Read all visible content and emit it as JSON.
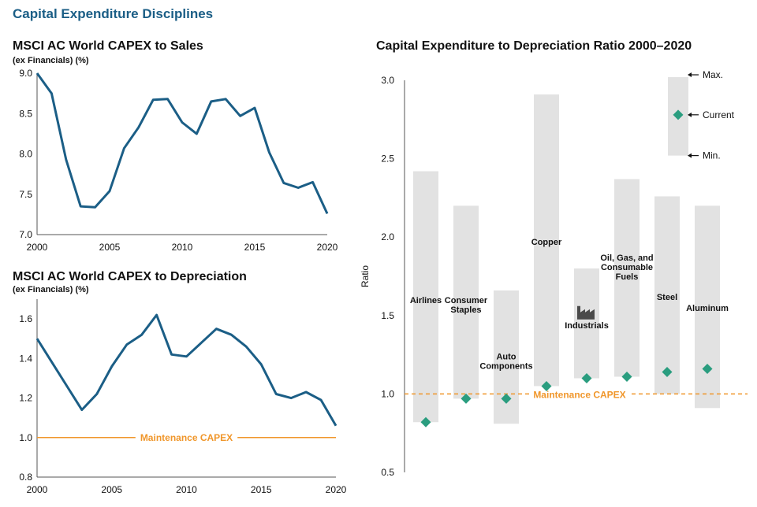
{
  "page_title": "Capital Expenditure Disciplines",
  "chart_data": [
    {
      "type": "line",
      "title": "MSCI AC World CAPEX to Sales",
      "subtitle": "(ex Financials) (%)",
      "xlabel": "",
      "ylabel": "",
      "xlim": [
        2000,
        2020
      ],
      "ylim": [
        7.0,
        9.0
      ],
      "xticks": [
        "2000",
        "2005",
        "2010",
        "2015",
        "2020"
      ],
      "yticks": [
        "7.0",
        "7.5",
        "8.0",
        "8.5",
        "9.0"
      ],
      "color": "#1b5e86",
      "x": [
        2000,
        2001,
        2002,
        2003,
        2004,
        2005,
        2006,
        2007,
        2008,
        2009,
        2010,
        2011,
        2012,
        2013,
        2014,
        2015,
        2016,
        2017,
        2018,
        2019,
        2020
      ],
      "values": [
        9.0,
        8.75,
        7.93,
        7.35,
        7.34,
        7.54,
        8.07,
        8.33,
        8.67,
        8.68,
        8.39,
        8.25,
        8.65,
        8.68,
        8.47,
        8.57,
        8.02,
        7.64,
        7.58,
        7.65,
        7.26
      ]
    },
    {
      "type": "line",
      "title": "MSCI AC World CAPEX to Depreciation",
      "subtitle": "(ex Financials) (%)",
      "xlabel": "",
      "ylabel": "",
      "xlim": [
        2000,
        2020
      ],
      "ylim": [
        0.8,
        1.7
      ],
      "xticks": [
        "2000",
        "2005",
        "2010",
        "2015",
        "2020"
      ],
      "yticks": [
        "0.8",
        "1.0",
        "1.2",
        "1.4",
        "1.6"
      ],
      "color": "#1b5e86",
      "x": [
        2000,
        2001,
        2002,
        2003,
        2004,
        2005,
        2006,
        2007,
        2008,
        2009,
        2010,
        2011,
        2012,
        2013,
        2014,
        2015,
        2016,
        2017,
        2018,
        2019,
        2020
      ],
      "values": [
        1.5,
        1.38,
        1.26,
        1.14,
        1.22,
        1.36,
        1.47,
        1.52,
        1.62,
        1.42,
        1.41,
        1.48,
        1.55,
        1.52,
        1.46,
        1.37,
        1.22,
        1.2,
        1.23,
        1.19,
        1.06
      ],
      "reference_line": {
        "value": 1.0,
        "label": "Maintenance CAPEX",
        "color": "#f0962a"
      }
    },
    {
      "type": "range_bar",
      "title": "Capital Expenditure to Depreciation Ratio 2000–2020",
      "ylabel": "Ratio",
      "ylim": [
        0.5,
        3.0
      ],
      "yticks": [
        "0.5",
        "1.0",
        "1.5",
        "2.0",
        "2.5",
        "3.0"
      ],
      "bar_color": "#e2e2e2",
      "marker_color": "#2a9d7f",
      "categories": [
        {
          "label": [
            "Airlines"
          ],
          "min": 0.82,
          "max": 2.42,
          "current": 0.82,
          "label_value": 1.6
        },
        {
          "label": [
            "Consumer",
            "Staples"
          ],
          "min": 0.97,
          "max": 2.2,
          "current": 0.97,
          "label_value": 1.57
        },
        {
          "label": [
            "Auto",
            "Components"
          ],
          "min": 0.81,
          "max": 1.66,
          "current": 0.97,
          "label_value": 1.21
        },
        {
          "label": [
            "Copper"
          ],
          "min": 1.05,
          "max": 2.91,
          "current": 1.05,
          "label_value": 1.97
        },
        {
          "label": [
            "Industrials"
          ],
          "min": 1.1,
          "max": 1.8,
          "current": 1.1,
          "label_value": 1.44,
          "icon": "factory-icon"
        },
        {
          "label": [
            "Oil, Gas, and",
            "Consumable",
            "Fuels"
          ],
          "min": 1.11,
          "max": 2.37,
          "current": 1.11,
          "label_value": 1.81
        },
        {
          "label": [
            "Steel"
          ],
          "min": 1.0,
          "max": 2.26,
          "current": 1.14,
          "label_value": 1.62
        },
        {
          "label": [
            "Aluminum"
          ],
          "min": 0.91,
          "max": 2.2,
          "current": 1.16,
          "label_value": 1.55
        }
      ],
      "reference_line": {
        "value": 1.0,
        "label": "Maintenance CAPEX",
        "color": "#f0962a"
      },
      "legend": {
        "max": "Max.",
        "current": "Current",
        "min": "Min.",
        "range_min": 2.52,
        "range_max": 3.02,
        "current_value": 2.78
      }
    }
  ]
}
